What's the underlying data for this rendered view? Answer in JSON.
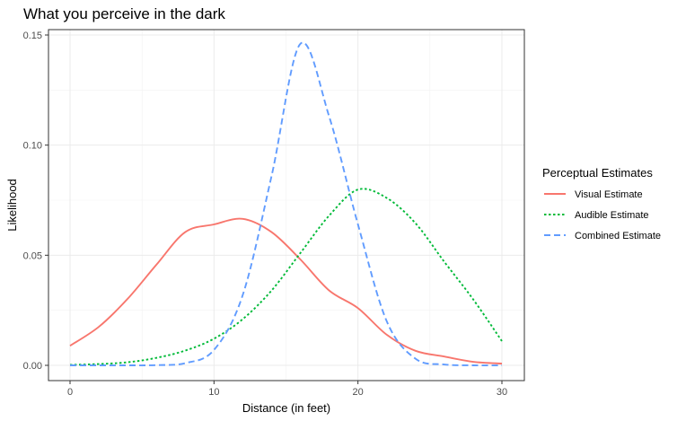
{
  "chart_data": {
    "type": "line",
    "title": "What you perceive in the dark",
    "xlabel": "Distance (in feet)",
    "ylabel": "Likelihood",
    "xlim": [
      -2,
      31.5
    ],
    "ylim": [
      -0.007,
      0.153
    ],
    "x_ticks": [
      0,
      10,
      20,
      30
    ],
    "y_ticks": [
      0.0,
      0.05,
      0.1,
      0.15
    ],
    "x_tick_labels": [
      "0",
      "10",
      "20",
      "30"
    ],
    "y_tick_labels": [
      "0.00",
      "0.05",
      "0.10",
      "0.15"
    ],
    "grid": true,
    "legend": {
      "title": "Perceptual Estimates",
      "placement": "right"
    },
    "x": [
      0,
      2,
      4,
      6,
      8,
      10,
      12,
      14,
      16,
      18,
      20,
      22,
      24,
      26,
      28,
      30
    ],
    "series": [
      {
        "name": "Visual Estimate",
        "color": "#F8766D",
        "dash": "solid",
        "values": [
          0.0089,
          0.0175,
          0.0302,
          0.0457,
          0.0605,
          0.064,
          0.0665,
          0.0605,
          0.0481,
          0.034,
          0.026,
          0.0139,
          0.0066,
          0.004,
          0.0016,
          0.0008
        ]
      },
      {
        "name": "Audible Estimate",
        "color": "#00BA38",
        "dash": "dotted",
        "values": [
          0.0002,
          0.0006,
          0.0014,
          0.0034,
          0.0067,
          0.0121,
          0.021,
          0.034,
          0.051,
          0.068,
          0.0798,
          0.076,
          0.0645,
          0.047,
          0.03,
          0.011
        ]
      },
      {
        "name": "Combined Estimate",
        "color": "#619CFF",
        "dash": "dashed",
        "values": [
          0.0,
          0.0,
          0.0,
          0.0001,
          0.001,
          0.007,
          0.032,
          0.086,
          0.146,
          0.113,
          0.064,
          0.02,
          0.003,
          0.0004,
          0.0,
          0.0
        ]
      }
    ]
  }
}
